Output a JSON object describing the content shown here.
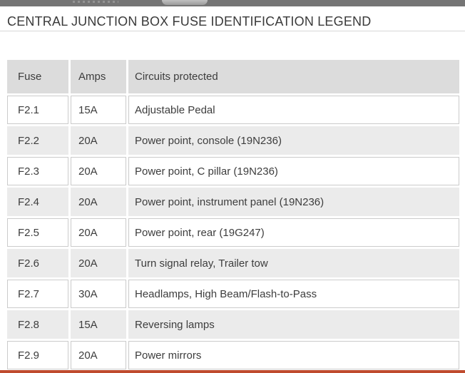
{
  "title": "CENTRAL JUNCTION BOX FUSE IDENTIFICATION LEGEND",
  "table": {
    "headers": [
      "Fuse",
      "Amps",
      "Circuits protected"
    ],
    "rows": [
      {
        "fuse": "F2.1",
        "amps": "15A",
        "circuit": "Adjustable Pedal"
      },
      {
        "fuse": "F2.2",
        "amps": "20A",
        "circuit": "Power point, console (19N236)"
      },
      {
        "fuse": "F2.3",
        "amps": "20A",
        "circuit": "Power point, C pillar (19N236)"
      },
      {
        "fuse": "F2.4",
        "amps": "20A",
        "circuit": "Power point, instrument panel (19N236)"
      },
      {
        "fuse": "F2.5",
        "amps": "20A",
        "circuit": "Power point, rear (19G247)"
      },
      {
        "fuse": "F2.6",
        "amps": "20A",
        "circuit": "Turn signal relay, Trailer tow"
      },
      {
        "fuse": "F2.7",
        "amps": "30A",
        "circuit": "Headlamps, High Beam/Flash-to-Pass"
      },
      {
        "fuse": "F2.8",
        "amps": "15A",
        "circuit": "Reversing lamps"
      },
      {
        "fuse": "F2.9",
        "amps": "20A",
        "circuit": "Power mirrors"
      }
    ]
  },
  "colors": {
    "top_bar": "#757575",
    "tab_pill": "#bdbdbd",
    "header_bg": "#dcdcdc",
    "alt_row_bg": "#ebebeb",
    "cell_border": "#cbcbcb",
    "title_rule": "#d8d8d8",
    "text": "#3d3d3d",
    "bottom_accent": "#bf4b2e"
  }
}
